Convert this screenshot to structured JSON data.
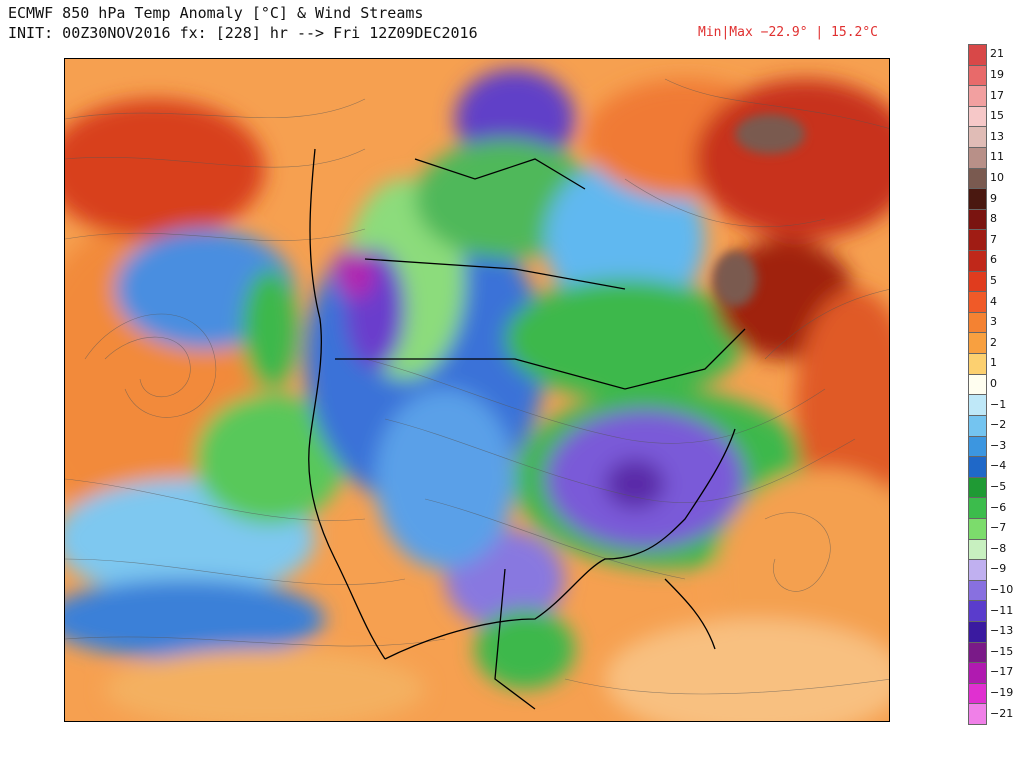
{
  "header": {
    "title_line1": "ECMWF 850 hPa Temp Anomaly [°C] & Wind Streams",
    "title_line2": "INIT: 00Z30NOV2016 fx: [228] hr --> Fri 12Z09DEC2016",
    "minmax": "Min|Max −22.9° | 15.2°C"
  },
  "map": {
    "region": "North America",
    "field": "850 hPa temperature anomaly with wind streamlines",
    "colors": {
      "warm_orange": "#f08a3c",
      "warm_red": "#d8401c",
      "dark_red": "#8a1a10",
      "brown_max": "#7a5a50",
      "cold_green": "#2fb84a",
      "cold_blue": "#3a6fd8",
      "cold_purple": "#6a40c8",
      "cold_magenta": "#9a2aa8",
      "ocean_neutral": "#a8d0f0"
    }
  },
  "legend": {
    "items": [
      {
        "label": "21",
        "color": "#d84848"
      },
      {
        "label": "19",
        "color": "#e86a6a"
      },
      {
        "label": "17",
        "color": "#f2a0a0"
      },
      {
        "label": "15",
        "color": "#f6c8c8"
      },
      {
        "label": "13",
        "color": "#e0bcb6"
      },
      {
        "label": "11",
        "color": "#b89088"
      },
      {
        "label": "10",
        "color": "#7a5a50"
      },
      {
        "label": "9",
        "color": "#4a1810"
      },
      {
        "label": "8",
        "color": "#7a1410"
      },
      {
        "label": "7",
        "color": "#a01c14"
      },
      {
        "label": "6",
        "color": "#c0281a"
      },
      {
        "label": "5",
        "color": "#e03c1e"
      },
      {
        "label": "4",
        "color": "#f05a28"
      },
      {
        "label": "3",
        "color": "#f48232"
      },
      {
        "label": "2",
        "color": "#f8a040"
      },
      {
        "label": "1",
        "color": "#fcd070"
      },
      {
        "label": "0",
        "color": "#fffef0"
      },
      {
        "label": "−1",
        "color": "#bfe8f8"
      },
      {
        "label": "−2",
        "color": "#74c4f0"
      },
      {
        "label": "−3",
        "color": "#3c96e0"
      },
      {
        "label": "−4",
        "color": "#1f68c8"
      },
      {
        "label": "−5",
        "color": "#1f9a34"
      },
      {
        "label": "−6",
        "color": "#3cbc4c"
      },
      {
        "label": "−7",
        "color": "#7cdc6c"
      },
      {
        "label": "−8",
        "color": "#c8f0c0"
      },
      {
        "label": "−9",
        "color": "#c0b0f0"
      },
      {
        "label": "−10",
        "color": "#8870e0"
      },
      {
        "label": "−11",
        "color": "#5a3ccc"
      },
      {
        "label": "−13",
        "color": "#3a1aa0"
      },
      {
        "label": "−15",
        "color": "#7a1a88"
      },
      {
        "label": "−17",
        "color": "#b01ab0"
      },
      {
        "label": "−19",
        "color": "#e030d0"
      },
      {
        "label": "−21",
        "color": "#f080e8"
      }
    ]
  }
}
